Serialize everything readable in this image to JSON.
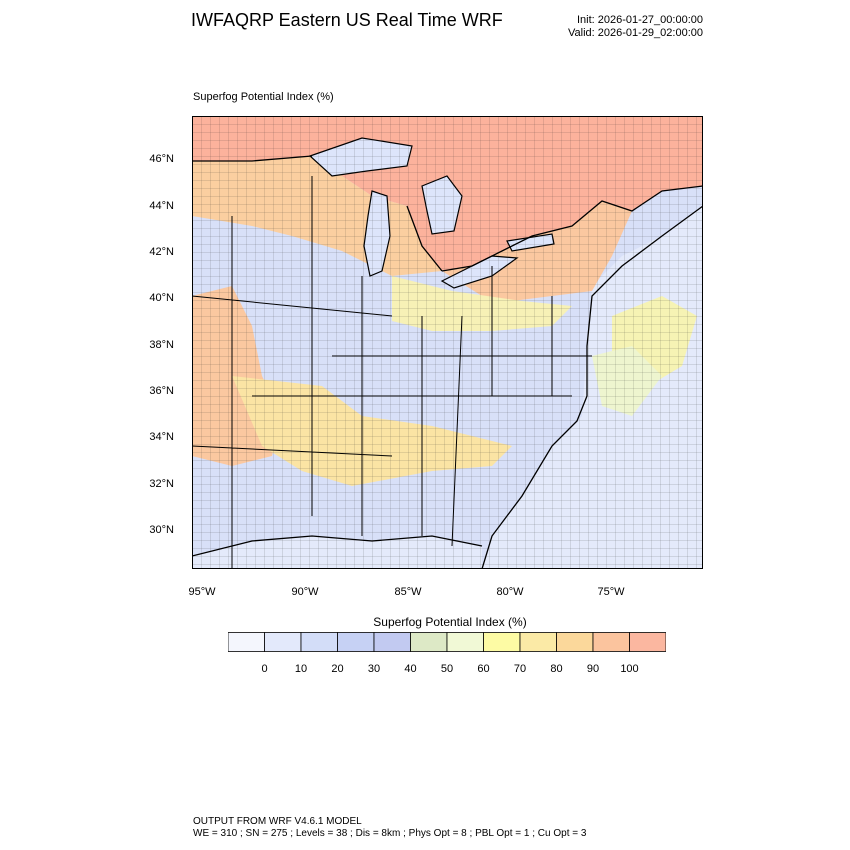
{
  "header": {
    "title": "IWFAQRP Eastern US Real Time WRF",
    "init": "Init: 2026-01-27_00:00:00",
    "valid": "Valid: 2026-01-29_02:00:00"
  },
  "plot": {
    "field_label": "Superfog Potential Index   (%)",
    "lat_labels": [
      "46°N",
      "44°N",
      "42°N",
      "40°N",
      "38°N",
      "36°N",
      "34°N",
      "32°N",
      "30°N"
    ],
    "lon_labels": [
      "95°W",
      "90°W",
      "85°W",
      "80°W",
      "75°W"
    ]
  },
  "colorbar": {
    "title": "Superfog Potential Index  (%)",
    "ticks": [
      "0",
      "10",
      "20",
      "30",
      "40",
      "50",
      "60",
      "70",
      "80",
      "90",
      "100"
    ],
    "colors": [
      "#f4f6fd",
      "#e3e9fb",
      "#d3ddf8",
      "#c6d1f4",
      "#c2caf1",
      "#dde9c6",
      "#f1f9d6",
      "#fdfba4",
      "#fbeaa6",
      "#fbd89b",
      "#fbc49e",
      "#fbb7a0"
    ]
  },
  "map_colors": {
    "canada": "#fcb29c",
    "ocean": "#e4eafb",
    "lakes": "#dde5fb",
    "borders": "#000000"
  },
  "footer": {
    "line1": "OUTPUT FROM WRF V4.6.1 MODEL",
    "line2": "WE = 310 ; SN = 275 ; Levels = 38 ; Dis = 8km ; Phys Opt = 8 ; PBL Opt = 1 ; Cu Opt = 3"
  }
}
